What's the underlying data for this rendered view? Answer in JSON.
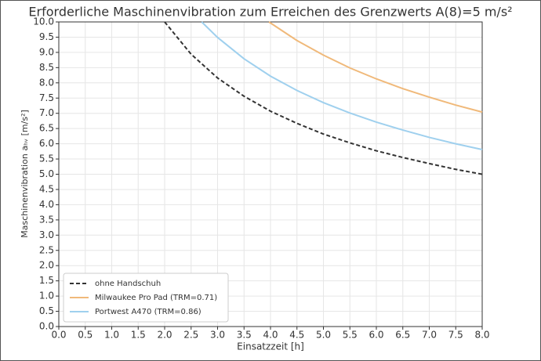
{
  "chart_data": {
    "type": "line",
    "title": "Erforderliche Maschinenvibration zum Erreichen des Grenzwerts A(8)=5 m/s²",
    "x_label": "Einsatzzeit [h]",
    "y_label": "Maschinenvibration aₕᵥ [m/s²]",
    "xlim": [
      0,
      8
    ],
    "ylim": [
      0,
      10
    ],
    "grid": true,
    "legend": "lower left",
    "xticks": [
      {
        "value": 0,
        "label": "0.0"
      },
      {
        "value": 0.5,
        "label": "0.5"
      },
      {
        "value": 1,
        "label": "1.0"
      },
      {
        "value": 1.5,
        "label": "1.5"
      },
      {
        "value": 2,
        "label": "2.0"
      },
      {
        "value": 2.5,
        "label": "2.5"
      },
      {
        "value": 3,
        "label": "3.0"
      },
      {
        "value": 3.5,
        "label": "3.5"
      },
      {
        "value": 4,
        "label": "4.0"
      },
      {
        "value": 4.5,
        "label": "4.5"
      },
      {
        "value": 5,
        "label": "5.0"
      },
      {
        "value": 5.5,
        "label": "5.5"
      },
      {
        "value": 6,
        "label": "6.0"
      },
      {
        "value": 6.5,
        "label": "6.5"
      },
      {
        "value": 7,
        "label": "7.0"
      },
      {
        "value": 7.5,
        "label": "7.5"
      },
      {
        "value": 8,
        "label": "8.0"
      }
    ],
    "yticks": [
      {
        "value": 0,
        "label": "0.0"
      },
      {
        "value": 0.5,
        "label": "0.5"
      },
      {
        "value": 1,
        "label": "1.0"
      },
      {
        "value": 1.5,
        "label": "1.5"
      },
      {
        "value": 2,
        "label": "2.0"
      },
      {
        "value": 2.5,
        "label": "2.5"
      },
      {
        "value": 3,
        "label": "3.0"
      },
      {
        "value": 3.5,
        "label": "3.5"
      },
      {
        "value": 4,
        "label": "4.0"
      },
      {
        "value": 4.5,
        "label": "4.5"
      },
      {
        "value": 5,
        "label": "5.0"
      },
      {
        "value": 5.5,
        "label": "5.5"
      },
      {
        "value": 6,
        "label": "6.0"
      },
      {
        "value": 6.5,
        "label": "6.5"
      },
      {
        "value": 7,
        "label": "7.0"
      },
      {
        "value": 7.5,
        "label": "7.5"
      },
      {
        "value": 8,
        "label": "8.0"
      },
      {
        "value": 8.5,
        "label": "8.5"
      },
      {
        "value": 9,
        "label": "9.0"
      },
      {
        "value": 9.5,
        "label": "9.5"
      },
      {
        "value": 10,
        "label": "10.0"
      }
    ],
    "series": [
      {
        "name": "ohne Handschuh",
        "color": "#333333",
        "dashed": true,
        "x": [
          2,
          2.5,
          3,
          3.5,
          4,
          4.5,
          5,
          5.5,
          6,
          6.5,
          7,
          7.5,
          8
        ],
        "values": [
          10.0,
          8.94,
          8.16,
          7.56,
          7.07,
          6.67,
          6.32,
          6.03,
          5.77,
          5.55,
          5.35,
          5.16,
          5.0
        ]
      },
      {
        "name": "Milwaukee Pro Pad (TRM=0.71)",
        "color": "#f0b97a",
        "dashed": false,
        "x": [
          3.97,
          4.5,
          5,
          5.5,
          6,
          6.5,
          7,
          7.5,
          8
        ],
        "values": [
          10.0,
          9.39,
          8.91,
          8.49,
          8.13,
          7.81,
          7.53,
          7.27,
          7.04
        ]
      },
      {
        "name": "Portwest A470 (TRM=0.86)",
        "color": "#9fd0ee",
        "dashed": false,
        "x": [
          2.7,
          3,
          3.5,
          4,
          4.5,
          5,
          5.5,
          6,
          6.5,
          7,
          7.5,
          8
        ],
        "values": [
          10.0,
          9.49,
          8.79,
          8.22,
          7.75,
          7.35,
          7.01,
          6.71,
          6.45,
          6.21,
          6.0,
          5.81
        ]
      }
    ]
  }
}
